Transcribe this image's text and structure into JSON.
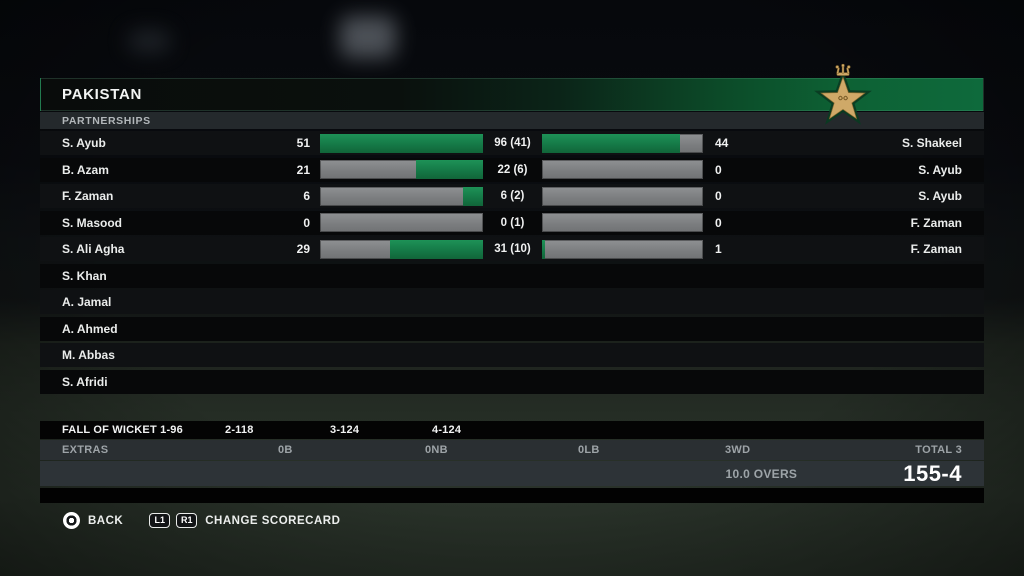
{
  "team_header": {
    "title": "PAKISTAN"
  },
  "section_label": "PARTNERSHIPS",
  "colors": {
    "bar_green": "#168a4f",
    "bar_gray": "#838587",
    "header_green": "#0e6a3c",
    "crest_gold": "#cfa968"
  },
  "partnerships": {
    "bar_scale_max_runs": 51,
    "rows": [
      {
        "name": "S. Ayub",
        "runs": "51",
        "partnership": "96 (41)",
        "partner_runs": "44",
        "partner": "S. Shakeel",
        "left_pct": 100,
        "right_pct": 86
      },
      {
        "name": "B. Azam",
        "runs": "21",
        "partnership": "22 (6)",
        "partner_runs": "0",
        "partner": "S. Ayub",
        "left_pct": 41,
        "right_pct": 0
      },
      {
        "name": "F. Zaman",
        "runs": "6",
        "partnership": "6 (2)",
        "partner_runs": "0",
        "partner": "S. Ayub",
        "left_pct": 12,
        "right_pct": 0
      },
      {
        "name": "S. Masood",
        "runs": "0",
        "partnership": "0 (1)",
        "partner_runs": "0",
        "partner": "F. Zaman",
        "left_pct": 0,
        "right_pct": 0
      },
      {
        "name": "S. Ali Agha",
        "runs": "29",
        "partnership": "31 (10)",
        "partner_runs": "1",
        "partner": "F. Zaman",
        "left_pct": 57,
        "right_pct": 2
      },
      {
        "name": "S. Khan"
      },
      {
        "name": "A. Jamal"
      },
      {
        "name": "A. Ahmed"
      },
      {
        "name": "M. Abbas"
      },
      {
        "name": "S. Afridi"
      }
    ]
  },
  "fall_of_wickets": {
    "label": "FALL OF WICKET 1-96",
    "items": [
      "2-118",
      "3-124",
      "4-124"
    ]
  },
  "extras": {
    "label": "EXTRAS",
    "b": "0B",
    "nb": "0NB",
    "lb": "0LB",
    "wd": "3WD",
    "total": "TOTAL 3"
  },
  "score": {
    "overs": "10.0 OVERS",
    "total": "155-4"
  },
  "footer": {
    "back": "BACK",
    "l1": "L1",
    "r1": "R1",
    "change": "CHANGE SCORECARD"
  }
}
